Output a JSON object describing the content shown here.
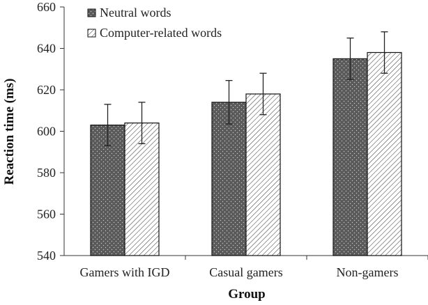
{
  "chart_data": {
    "type": "bar",
    "title": "",
    "xlabel": "Group",
    "ylabel": "Reaction time (ms)",
    "ylim": [
      540,
      660
    ],
    "yticks": [
      540,
      560,
      580,
      600,
      620,
      640,
      660
    ],
    "categories": [
      "Gamers with IGD",
      "Casual gamers",
      "Non-gamers"
    ],
    "series": [
      {
        "name": "Neutral words",
        "values": [
          603,
          614,
          635
        ],
        "errors": [
          10,
          10.5,
          10
        ],
        "pattern": "dotted",
        "color": "#5a5a5a"
      },
      {
        "name": "Computer-related words",
        "values": [
          604,
          618,
          638
        ],
        "errors": [
          10,
          10,
          10
        ],
        "pattern": "diagonal-hatch",
        "color": "#ffffff"
      }
    ],
    "legend_position": "top-left",
    "grid": false
  }
}
